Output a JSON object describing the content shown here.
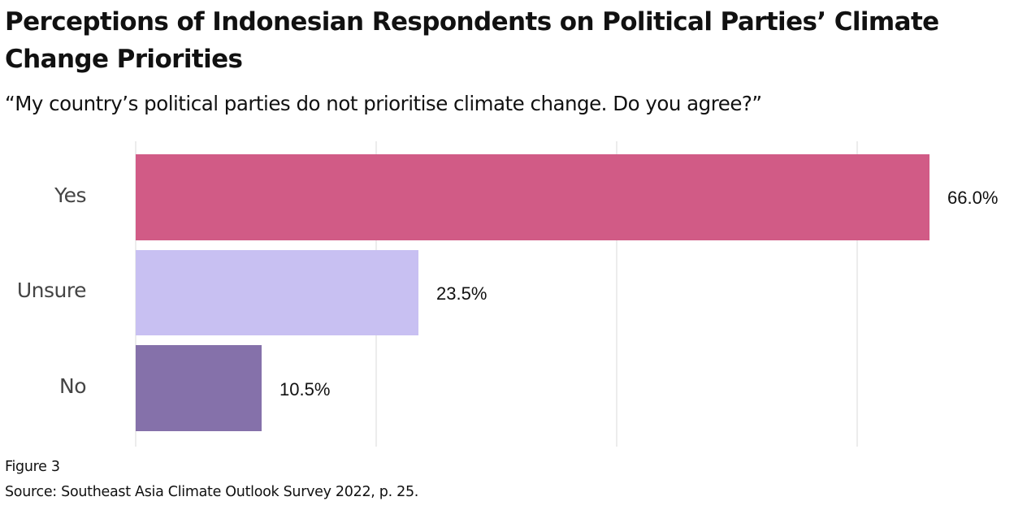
{
  "header": {
    "title": "Perceptions of Indonesian Respondents on Political Parties’ Climate Change Priorities",
    "subtitle": "“My country’s political parties do not prioritise climate change. Do you agree?”"
  },
  "footer": {
    "figure_label": "Figure 3",
    "source": "Source: Southeast Asia Climate Outlook Survey 2022, p. 25."
  },
  "colors": {
    "yes": "#d15b86",
    "unsure": "#c8c0f2",
    "no": "#8571aa",
    "gridline": "#ececec"
  },
  "chart_data": {
    "type": "bar",
    "orientation": "horizontal",
    "title": "Perceptions of Indonesian Respondents on Political Parties’ Climate Change Priorities",
    "subtitle": "“My country’s political parties do not prioritise climate change. Do you agree?”",
    "categories": [
      "Yes",
      "Unsure",
      "No"
    ],
    "values": [
      66.0,
      23.5,
      10.5
    ],
    "value_labels": [
      "66.0%",
      "23.5%",
      "10.5%"
    ],
    "unit": "%",
    "xlabel": "",
    "ylabel": "",
    "xlim": [
      0,
      80
    ],
    "gridlines_x": [
      0,
      20,
      40,
      60
    ],
    "grid": true,
    "x_tick_labels_shown": false,
    "legend": null,
    "bar_colors": [
      "#d15b86",
      "#c8c0f2",
      "#8571aa"
    ],
    "caption": "Figure 3",
    "source": "Source: Southeast Asia Climate Outlook Survey 2022, p. 25."
  }
}
